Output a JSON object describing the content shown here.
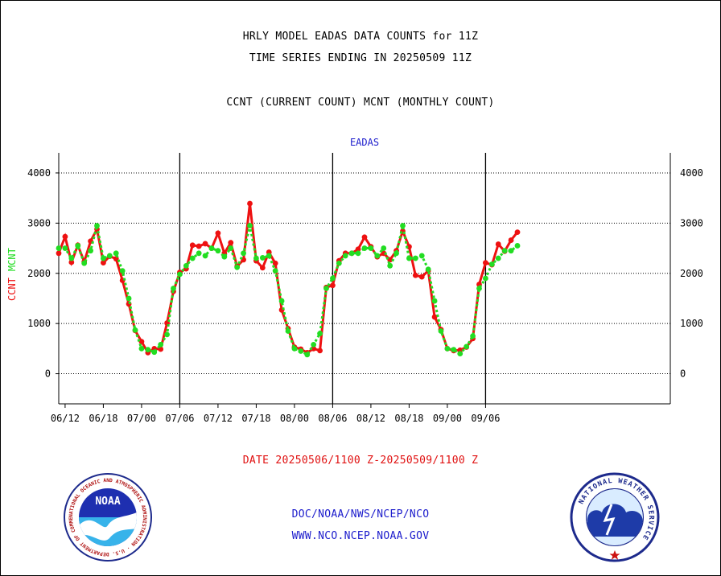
{
  "titles": {
    "line1": "HRLY MODEL EADAS DATA COUNTS for 11Z",
    "line2": "TIME SERIES ENDING IN 20250509 11Z",
    "line3": "CCNT (CURRENT COUNT) MCNT (MONTHLY COUNT)"
  },
  "footer": {
    "date_range": "DATE 20250506/1100 Z-20250509/1100 Z",
    "org_path": "DOC/NOAA/NWS/NCEP/NCO",
    "website": "WWW.NCO.NCEP.NOAA.GOV"
  },
  "logos": {
    "noaa_text": "NOAA",
    "noaa_ring_text": "NATIONAL OCEANIC AND ATMOSPHERIC ADMINISTRATION · U.S. DEPARTMENT OF COMMERCE ·",
    "nws_ring_text": "NATIONAL WEATHER SERVICE"
  },
  "colors": {
    "ccnt": "#ee1111",
    "mcnt": "#22dd22",
    "axis": "#000000",
    "label_blue": "#1c1ccc"
  },
  "chart_data": {
    "type": "line",
    "title": "EADAS",
    "ylabel_series": [
      "CCNT",
      "MCNT"
    ],
    "ylim": [
      -600,
      4400
    ],
    "yticks": [
      0,
      1000,
      2000,
      3000,
      4000
    ],
    "ytick_labels": [
      "0",
      "1000",
      "2000",
      "3000",
      "4000"
    ],
    "xlim": [
      0,
      96
    ],
    "xticks": [
      {
        "x": 1,
        "label": "06/12"
      },
      {
        "x": 7,
        "label": "06/18"
      },
      {
        "x": 13,
        "label": "07/00"
      },
      {
        "x": 19,
        "label": "07/06"
      },
      {
        "x": 25,
        "label": "07/12"
      },
      {
        "x": 31,
        "label": "07/18"
      },
      {
        "x": 37,
        "label": "08/00"
      },
      {
        "x": 43,
        "label": "08/06"
      },
      {
        "x": 49,
        "label": "08/12"
      },
      {
        "x": 55,
        "label": "08/18"
      },
      {
        "x": 61,
        "label": "09/00"
      },
      {
        "x": 67,
        "label": "09/06"
      }
    ],
    "day_boundaries": [
      19,
      43,
      67
    ],
    "grid": true,
    "series": [
      {
        "name": "CCNT",
        "values": [
          2400,
          2730,
          2220,
          2560,
          2230,
          2640,
          2880,
          2210,
          2340,
          2290,
          1860,
          1390,
          860,
          640,
          420,
          500,
          490,
          1010,
          1640,
          2020,
          2090,
          2560,
          2540,
          2590,
          2500,
          2800,
          2400,
          2610,
          2140,
          2270,
          3390,
          2250,
          2110,
          2420,
          2200,
          1270,
          900,
          530,
          490,
          420,
          500,
          460,
          1720,
          1760,
          2250,
          2400,
          2400,
          2480,
          2720,
          2530,
          2330,
          2400,
          2270,
          2450,
          2840,
          2530,
          1960,
          1930,
          2050,
          1130,
          880,
          500,
          460,
          470,
          530,
          700,
          1780,
          2210,
          2170,
          2580,
          2440,
          2660,
          2820
        ]
      },
      {
        "name": "MCNT",
        "values": [
          2500,
          2500,
          2300,
          2550,
          2200,
          2450,
          2950,
          2300,
          2350,
          2400,
          2050,
          1500,
          870,
          500,
          480,
          430,
          580,
          780,
          1700,
          1980,
          2150,
          2300,
          2400,
          2350,
          2500,
          2450,
          2330,
          2500,
          2120,
          2400,
          2950,
          2300,
          2310,
          2350,
          2050,
          1450,
          850,
          500,
          450,
          380,
          580,
          800,
          1700,
          1900,
          2200,
          2350,
          2400,
          2400,
          2500,
          2500,
          2350,
          2500,
          2150,
          2400,
          2950,
          2300,
          2300,
          2350,
          2080,
          1450,
          850,
          500,
          480,
          400,
          540,
          750,
          1700,
          1900,
          2180,
          2300,
          2450,
          2450,
          2550
        ]
      }
    ]
  }
}
